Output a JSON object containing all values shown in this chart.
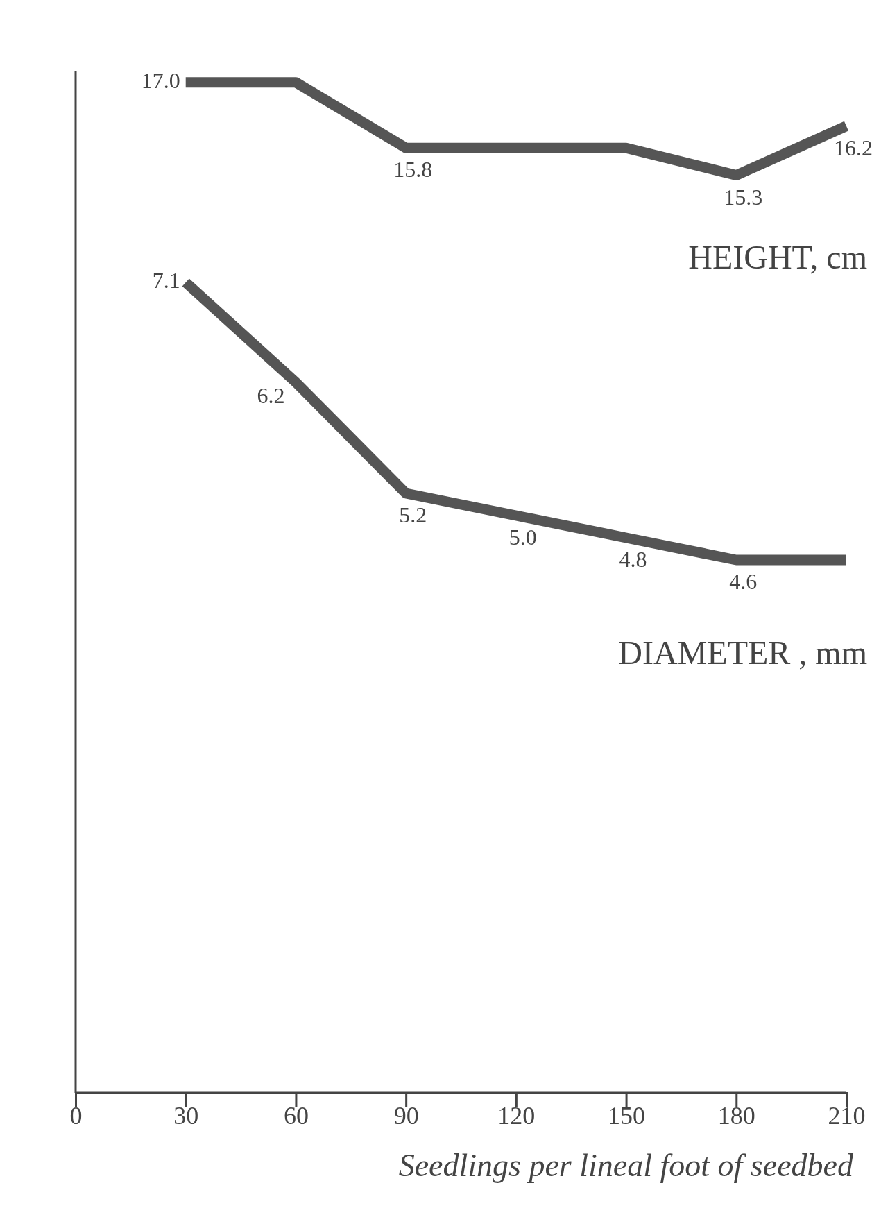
{
  "chart_data": {
    "type": "line",
    "xlabel": "Seedlings per lineal foot of seedbed",
    "x": [
      30,
      60,
      90,
      120,
      150,
      180,
      210
    ],
    "xlim": [
      0,
      210
    ],
    "xticks": [
      0,
      30,
      60,
      90,
      120,
      150,
      180,
      210
    ],
    "ylim": [
      -1.5,
      17.2
    ],
    "y2lim": [
      -0.2,
      9.0
    ],
    "tick_labels": "x",
    "series": [
      {
        "name": "HEIGHT, cm",
        "color": "#555555",
        "values": [
          17.0,
          17.0,
          15.8,
          15.8,
          15.8,
          15.3,
          16.2
        ],
        "value_labels": [
          "17.0",
          null,
          "15.8",
          null,
          null,
          "15.3",
          "16.2"
        ]
      },
      {
        "name": "DIAMETER , mm",
        "color": "#555555",
        "axis": "y2",
        "values": [
          7.1,
          6.2,
          5.2,
          5.0,
          4.8,
          4.6,
          4.6
        ],
        "value_labels": [
          "7.1",
          "6.2",
          "5.2",
          "5.0",
          "4.8",
          "4.6",
          null
        ]
      }
    ]
  }
}
